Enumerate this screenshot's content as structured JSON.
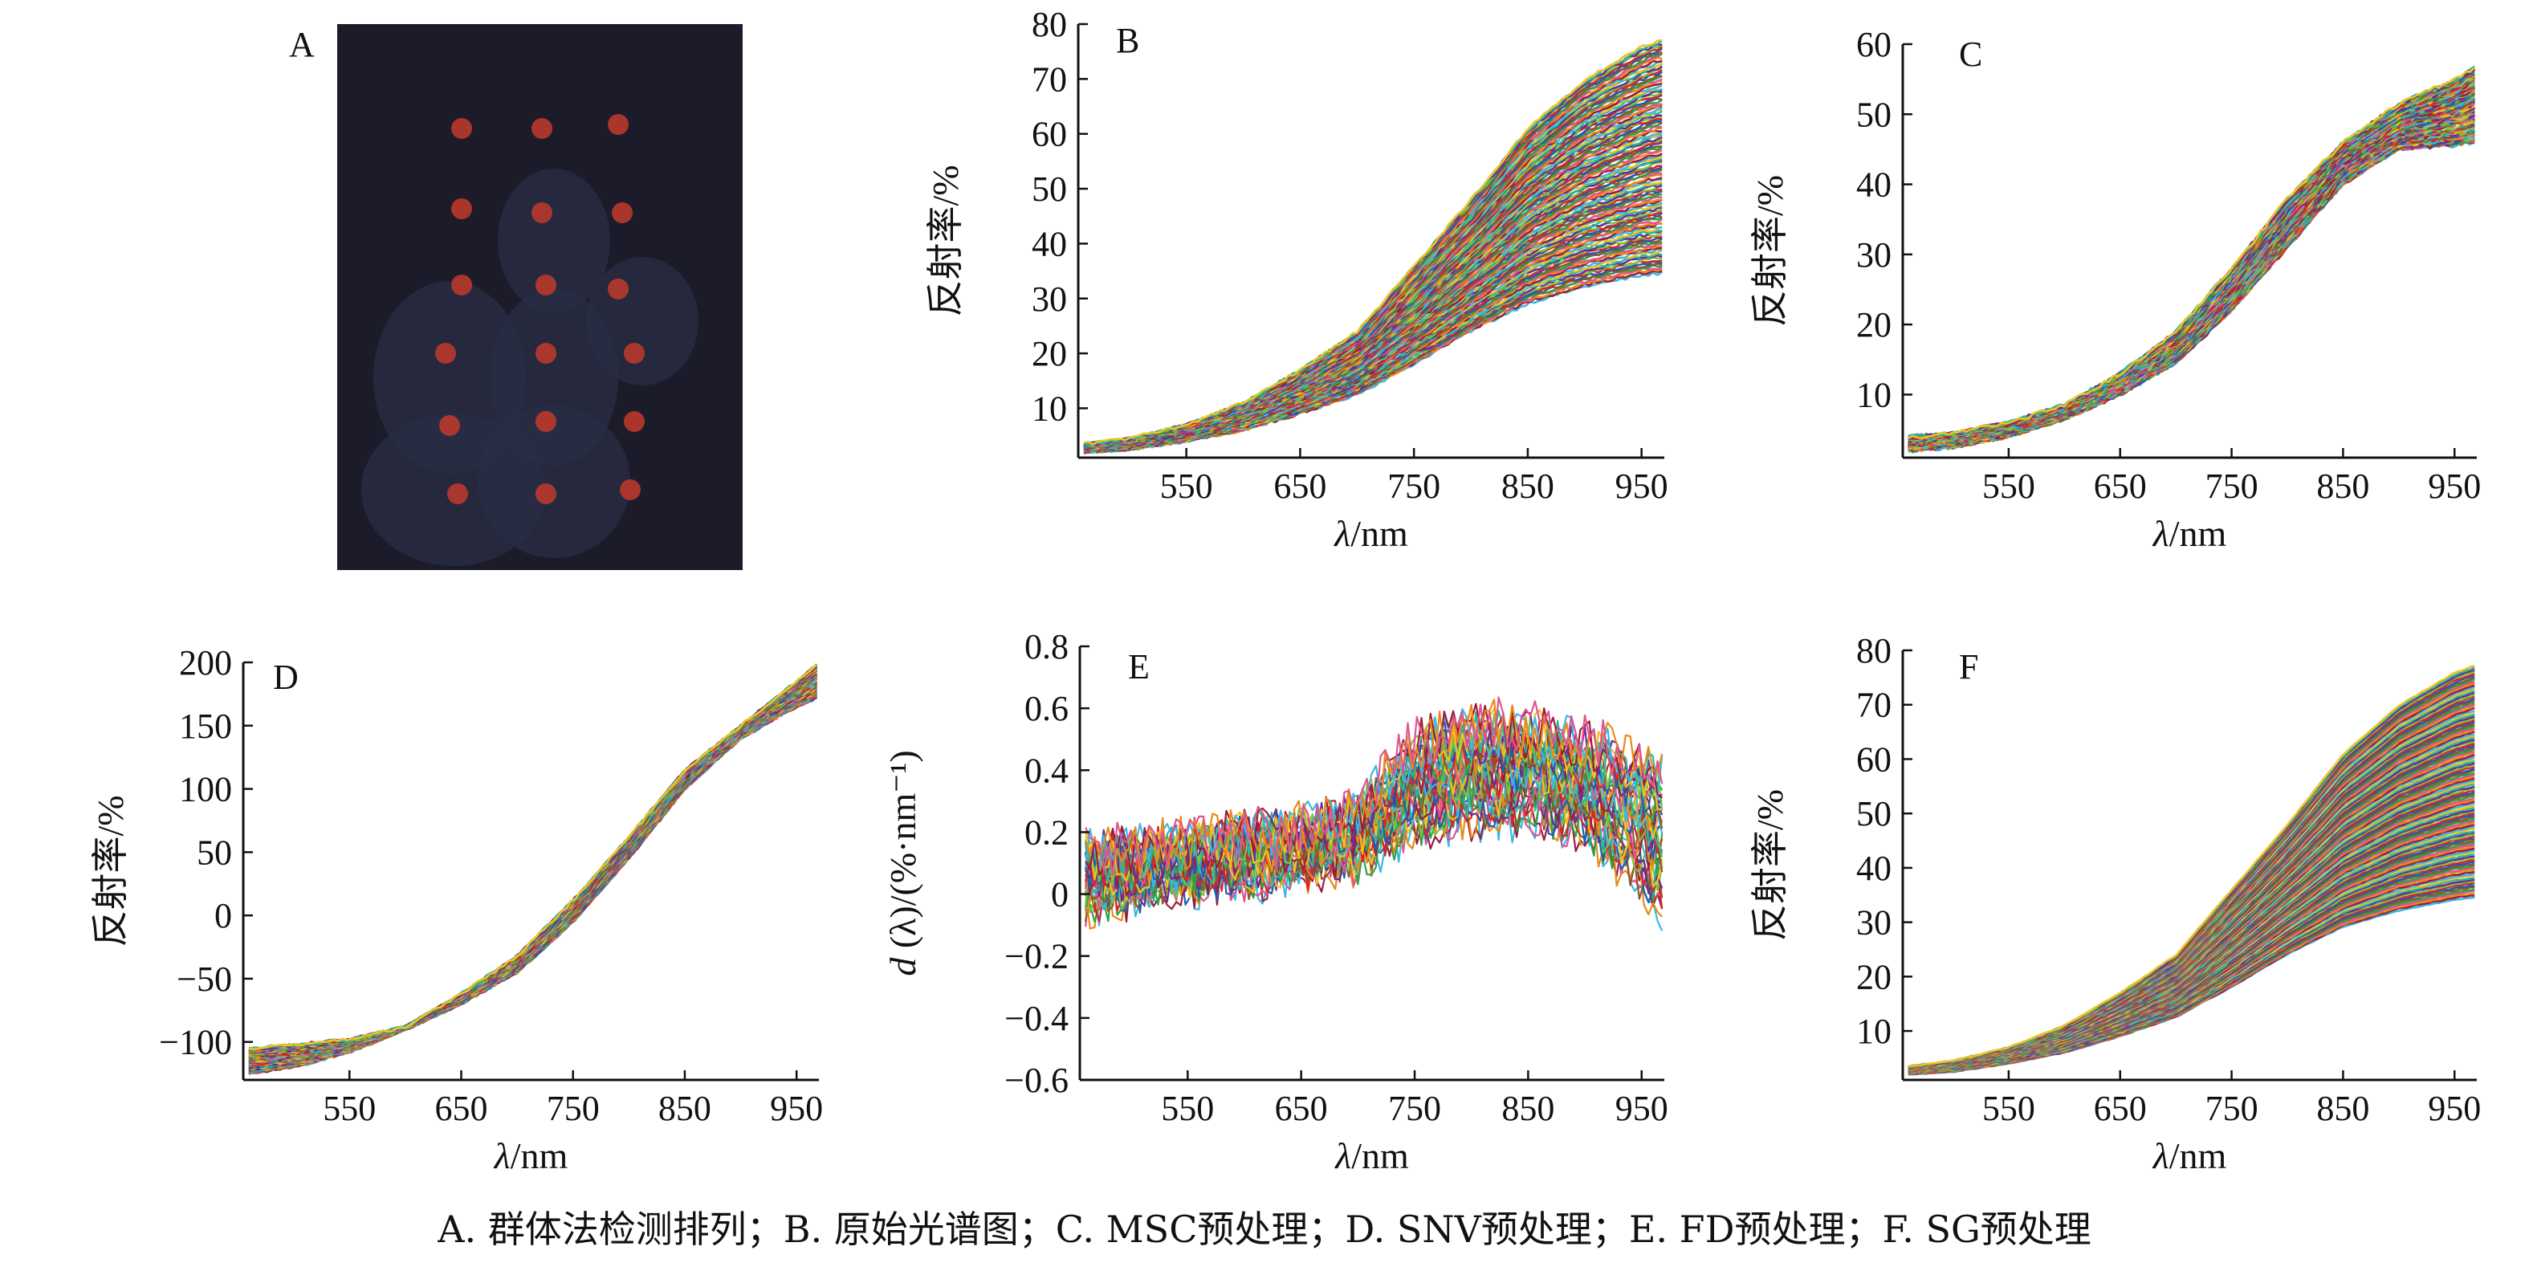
{
  "caption": "A. 群体法检测排列；B. 原始光谱图；C. MSC预处理；D. SNV预处理；E. FD预处理；F. SG预处理",
  "palette": [
    "#3cb7e6",
    "#d8242a",
    "#e88a1a",
    "#6b2c91",
    "#2fa04a",
    "#f2c21b",
    "#1f5fae",
    "#9b1d3c",
    "#7fc241",
    "#e0548e",
    "#2cb5a0",
    "#8a5a2b"
  ],
  "photo": {
    "label": "A",
    "background": "#1c1b2a",
    "spot_color": "#c23a2c"
  },
  "chart_data": [
    {
      "panel": "B",
      "type": "line",
      "xlabel_italic": "λ",
      "xlabel_rest": "/nm",
      "ylabel": "反射率/%",
      "xlim": [
        455,
        970
      ],
      "ylim": [
        1,
        80
      ],
      "xticks": [
        550,
        650,
        750,
        850,
        950
      ],
      "xtick_labels": [
        "550",
        "650",
        "750",
        "850",
        "950"
      ],
      "yticks": [
        10,
        20,
        30,
        40,
        50,
        60,
        70,
        80
      ],
      "ytick_labels": [
        "10",
        "20",
        "30",
        "40",
        "50",
        "60",
        "70",
        "80"
      ],
      "series_count": 120,
      "x": [
        460,
        500,
        550,
        600,
        650,
        700,
        750,
        800,
        850,
        900,
        950,
        970
      ],
      "envelope_low": [
        2,
        2.5,
        4,
        6,
        9,
        12.5,
        18,
        24,
        29,
        32,
        34,
        34.5
      ],
      "envelope_high": [
        3.5,
        4.5,
        7,
        11,
        17,
        24,
        36,
        48,
        61,
        70,
        76,
        77.5
      ],
      "noise": 0.3
    },
    {
      "panel": "C",
      "type": "line",
      "xlabel_italic": "λ",
      "xlabel_rest": "/nm",
      "ylabel": "反射率/%",
      "xlim": [
        455,
        970
      ],
      "ylim": [
        1,
        60
      ],
      "xticks": [
        550,
        650,
        750,
        850,
        950
      ],
      "xtick_labels": [
        "550",
        "650",
        "750",
        "850",
        "950"
      ],
      "yticks": [
        10,
        20,
        30,
        40,
        50,
        60
      ],
      "ytick_labels": [
        "10",
        "20",
        "30",
        "40",
        "50",
        "60"
      ],
      "series_count": 120,
      "x": [
        460,
        500,
        550,
        600,
        650,
        700,
        750,
        800,
        850,
        900,
        950,
        970
      ],
      "envelope_low": [
        2,
        2.5,
        4,
        6.5,
        10,
        14.5,
        22,
        31,
        40,
        45,
        45.5,
        46
      ],
      "envelope_high": [
        4,
        4.5,
        6,
        8.5,
        13,
        19,
        28,
        38,
        46,
        51.5,
        55,
        57
      ],
      "noise": 0.3
    },
    {
      "panel": "D",
      "type": "line",
      "xlabel_italic": "λ",
      "xlabel_rest": "/nm",
      "ylabel": "反射率/%",
      "xlim": [
        455,
        970
      ],
      "ylim": [
        -130,
        200
      ],
      "xticks": [
        550,
        650,
        750,
        850,
        950
      ],
      "xtick_labels": [
        "550",
        "650",
        "750",
        "850",
        "950"
      ],
      "yticks": [
        -100,
        -50,
        0,
        50,
        100,
        150,
        200
      ],
      "ytick_labels": [
        "−100",
        "−50",
        "0",
        "50",
        "100",
        "150",
        "200"
      ],
      "series_count": 120,
      "x": [
        460,
        500,
        550,
        600,
        650,
        700,
        750,
        800,
        850,
        900,
        950,
        970
      ],
      "envelope_low": [
        -125,
        -120,
        -108,
        -90,
        -70,
        -45,
        -5,
        45,
        100,
        140,
        165,
        172
      ],
      "envelope_high": [
        -105,
        -102,
        -98,
        -88,
        -62,
        -32,
        12,
        62,
        115,
        150,
        185,
        200
      ],
      "noise": 1.2
    },
    {
      "panel": "E",
      "type": "line",
      "xlabel_italic": "λ",
      "xlabel_rest": "/nm",
      "ylabel_italic": "d",
      "ylabel_rest": " (λ)/(%·nm⁻¹)",
      "xlim": [
        455,
        970
      ],
      "ylim": [
        -0.6,
        0.8
      ],
      "xticks": [
        550,
        650,
        750,
        850,
        950
      ],
      "xtick_labels": [
        "550",
        "650",
        "750",
        "850",
        "950"
      ],
      "yticks": [
        -0.6,
        -0.4,
        -0.2,
        0,
        0.2,
        0.4,
        0.6,
        0.8
      ],
      "ytick_labels": [
        "−0.6",
        "−0.4",
        "−0.2",
        "0",
        "0.2",
        "0.4",
        "0.6",
        "0.8"
      ],
      "series_count": 40,
      "x": [
        460,
        500,
        550,
        600,
        650,
        700,
        750,
        800,
        850,
        900,
        950,
        970
      ],
      "envelope_low": [
        -0.05,
        0.0,
        0.03,
        0.05,
        0.07,
        0.1,
        0.2,
        0.25,
        0.25,
        0.2,
        0.0,
        -0.05
      ],
      "envelope_high": [
        0.15,
        0.15,
        0.17,
        0.2,
        0.22,
        0.27,
        0.5,
        0.55,
        0.55,
        0.5,
        0.45,
        0.4
      ],
      "noise": 0.09
    },
    {
      "panel": "F",
      "type": "line",
      "xlabel_italic": "λ",
      "xlabel_rest": "/nm",
      "ylabel": "反射率/%",
      "xlim": [
        455,
        970
      ],
      "ylim": [
        1,
        80
      ],
      "xticks": [
        550,
        650,
        750,
        850,
        950
      ],
      "xtick_labels": [
        "550",
        "650",
        "750",
        "850",
        "950"
      ],
      "yticks": [
        10,
        20,
        30,
        40,
        50,
        60,
        70,
        80
      ],
      "ytick_labels": [
        "10",
        "20",
        "30",
        "40",
        "50",
        "60",
        "70",
        "80"
      ],
      "series_count": 120,
      "x": [
        460,
        500,
        550,
        600,
        650,
        700,
        750,
        800,
        850,
        900,
        950,
        970
      ],
      "envelope_low": [
        2,
        2.5,
        4,
        6,
        9,
        12.5,
        18,
        24,
        29,
        32,
        34,
        34.5
      ],
      "envelope_high": [
        3.5,
        4.5,
        7,
        11,
        17,
        24,
        36,
        48,
        61,
        70,
        76,
        77.5
      ],
      "noise": 0.1
    }
  ]
}
